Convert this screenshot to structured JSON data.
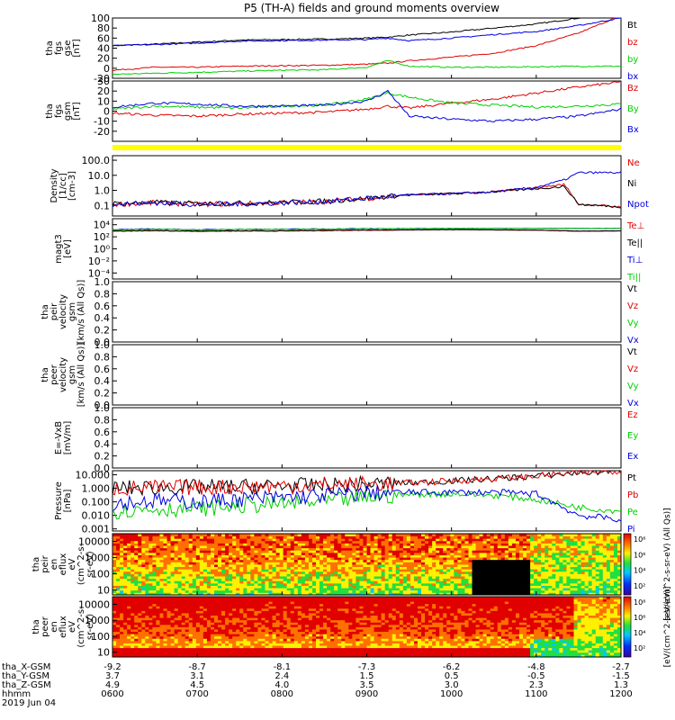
{
  "title": "P5 (TH-A) fields and ground moments overview",
  "time_axis": {
    "rows": [
      {
        "label": "tha_X-GSM",
        "values": [
          "-9.2",
          "-8.7",
          "-8.1",
          "-7.3",
          "-6.2",
          "-4.8",
          "-2.7"
        ]
      },
      {
        "label": "tha_Y-GSM",
        "values": [
          "3.7",
          "3.1",
          "2.4",
          "1.5",
          "0.5",
          "-0.5",
          "-1.5"
        ]
      },
      {
        "label": "tha_Z-GSM",
        "values": [
          "4.9",
          "4.5",
          "4.0",
          "3.5",
          "3.0",
          "2.3",
          "1.3"
        ]
      },
      {
        "label": "hhmm",
        "values": [
          "0600",
          "0700",
          "0800",
          "0900",
          "1000",
          "1100",
          "1200"
        ]
      }
    ],
    "date": "2019 Jun 04"
  },
  "colors": {
    "black": "#000000",
    "red": "#e00000",
    "green": "#00d000",
    "blue": "#0000e0",
    "yellow": "#ffff00"
  },
  "chart_data": [
    {
      "type": "line",
      "title": "tha fgs gse [nT]",
      "ylabel_lines": [
        "tha",
        "fgs",
        "gse",
        "[nT]"
      ],
      "ylim": [
        -20,
        100
      ],
      "yticks": [
        "-20",
        "0",
        "20",
        "40",
        "60",
        "80",
        "100"
      ],
      "x": [
        "06:00",
        "06:30",
        "07:00",
        "07:30",
        "08:00",
        "08:30",
        "09:00",
        "09:15",
        "09:30",
        "10:00",
        "10:30",
        "11:00",
        "11:30",
        "12:00"
      ],
      "series": [
        {
          "name": "Bt",
          "color": "#000000",
          "values": [
            45,
            48,
            52,
            56,
            57,
            58,
            60,
            62,
            66,
            72,
            80,
            88,
            100,
            120
          ]
        },
        {
          "name": "bz",
          "color": "#e00000",
          "values": [
            -4,
            2,
            2,
            4,
            5,
            6,
            8,
            10,
            15,
            22,
            30,
            45,
            70,
            105
          ]
        },
        {
          "name": "by",
          "color": "#00d000",
          "values": [
            -12,
            -10,
            -8,
            -6,
            -4,
            -3,
            2,
            15,
            4,
            2,
            2,
            3,
            4,
            4
          ]
        },
        {
          "name": "bx",
          "color": "#0000e0",
          "values": [
            45,
            47,
            50,
            54,
            55,
            56,
            57,
            60,
            55,
            60,
            67,
            73,
            85,
            100
          ]
        }
      ]
    },
    {
      "type": "line",
      "title": "tha fgs gsm [nT]",
      "ylabel_lines": [
        "tha",
        "fgs",
        "gsm",
        "[nT]"
      ],
      "ylim": [
        -30,
        30
      ],
      "yticks": [
        "-20",
        "-10",
        "0",
        "10",
        "20",
        "30"
      ],
      "x": [
        "06:00",
        "06:30",
        "07:00",
        "07:30",
        "08:00",
        "08:30",
        "09:00",
        "09:15",
        "09:30",
        "10:00",
        "10:30",
        "11:00",
        "11:30",
        "12:00"
      ],
      "series": [
        {
          "name": "Bz",
          "color": "#e00000",
          "values": [
            -2,
            -4,
            -5,
            -3,
            -2,
            -1,
            2,
            5,
            3,
            8,
            12,
            18,
            24,
            29
          ]
        },
        {
          "name": "By",
          "color": "#00d000",
          "values": [
            2,
            5,
            4,
            3,
            5,
            6,
            12,
            18,
            14,
            8,
            6,
            4,
            5,
            7
          ]
        },
        {
          "name": "Bx",
          "color": "#0000e0",
          "values": [
            4,
            8,
            7,
            5,
            5,
            6,
            10,
            20,
            -5,
            -8,
            -10,
            -8,
            -5,
            2
          ]
        }
      ]
    },
    {
      "type": "line",
      "title": "Density [1/cc] [cm-3]",
      "ylabel_lines": [
        "Density",
        "[1/cc]",
        "[cm-3]"
      ],
      "yscale": "log",
      "ylim": [
        0.02,
        200
      ],
      "yticks": [
        "0.1",
        "1.0",
        "10.0",
        "100.0"
      ],
      "x": [
        "06:00",
        "06:30",
        "07:00",
        "07:30",
        "08:00",
        "08:30",
        "09:00",
        "09:30",
        "10:00",
        "10:30",
        "11:00",
        "11:20",
        "11:30",
        "12:00"
      ],
      "series": [
        {
          "name": "Ne",
          "color": "#e00000",
          "values": [
            0.12,
            0.15,
            0.12,
            0.13,
            0.15,
            0.18,
            0.3,
            0.5,
            0.6,
            0.8,
            1.5,
            2.5,
            0.12,
            0.08
          ]
        },
        {
          "name": "Ni",
          "color": "#000000",
          "values": [
            0.13,
            0.16,
            0.13,
            0.14,
            0.16,
            0.19,
            0.3,
            0.5,
            0.6,
            0.8,
            1.3,
            1.8,
            0.12,
            0.08
          ]
        },
        {
          "name": "Npot",
          "color": "#0000e0",
          "values": [
            0.12,
            0.15,
            0.12,
            0.13,
            0.15,
            0.18,
            0.3,
            0.5,
            0.6,
            0.8,
            1.6,
            5,
            15,
            15
          ]
        }
      ]
    },
    {
      "type": "line",
      "title": "magt3 [eV]",
      "ylabel_lines": [
        "magt3",
        "[eV]"
      ],
      "yscale": "log",
      "ylim": [
        1e-05,
        100000
      ],
      "yticks": [
        "10-4",
        "10-2",
        "10^0",
        "10^2",
        "10^4"
      ],
      "x": [
        "06:00",
        "06:30",
        "07:00",
        "07:30",
        "08:00",
        "09:00",
        "10:00",
        "11:00",
        "11:30",
        "12:00"
      ],
      "series": [
        {
          "name": "Te⊥",
          "color": "#e00000",
          "values": [
            800,
            1000,
            800,
            900,
            900,
            1200,
            1500,
            1200,
            800,
            900
          ]
        },
        {
          "name": "Te||",
          "color": "#000000",
          "values": [
            900,
            1100,
            900,
            1000,
            1000,
            1300,
            1600,
            1300,
            900,
            1000
          ]
        },
        {
          "name": "Ti⊥",
          "color": "#0000e0",
          "values": [
            1500,
            2000,
            1500,
            1800,
            1800,
            2200,
            2500,
            2500,
            2500,
            2500
          ]
        },
        {
          "name": "Ti||",
          "color": "#00d000",
          "values": [
            1400,
            1800,
            1400,
            1700,
            1700,
            2000,
            2400,
            2400,
            2400,
            2400
          ]
        }
      ]
    },
    {
      "type": "line",
      "title": "tha peir velocity gsm [km/s (All Qs)]",
      "ylabel_lines": [
        "tha",
        "peir",
        "velocity",
        "gsm",
        "[km/s (All Qs)]"
      ],
      "ylim": [
        0,
        1
      ],
      "yticks": [
        "0.0",
        "0.2",
        "0.4",
        "0.6",
        "0.8",
        "1.0"
      ],
      "series": [
        {
          "name": "Vt",
          "color": "#000000",
          "values": []
        },
        {
          "name": "Vz",
          "color": "#e00000",
          "values": []
        },
        {
          "name": "Vy",
          "color": "#00d000",
          "values": []
        },
        {
          "name": "Vx",
          "color": "#0000e0",
          "values": []
        }
      ]
    },
    {
      "type": "line",
      "title": "tha peer velocity gsm [km/s (All Qs)]",
      "ylabel_lines": [
        "tha",
        "peer",
        "velocity",
        "gsm",
        "[km/s (All Qs)]"
      ],
      "ylim": [
        0,
        1
      ],
      "yticks": [
        "0.0",
        "0.2",
        "0.4",
        "0.6",
        "0.8",
        "1.0"
      ],
      "series": [
        {
          "name": "Vt",
          "color": "#000000",
          "values": []
        },
        {
          "name": "Vz",
          "color": "#e00000",
          "values": []
        },
        {
          "name": "Vy",
          "color": "#00d000",
          "values": []
        },
        {
          "name": "Vx",
          "color": "#0000e0",
          "values": []
        }
      ]
    },
    {
      "type": "line",
      "title": "E=-VxB [mV/m]",
      "ylabel_lines": [
        "E=-VxB",
        "[mV/m]"
      ],
      "ylim": [
        0,
        1
      ],
      "yticks": [
        "0.0",
        "0.2",
        "0.4",
        "0.6",
        "0.8",
        "1.0"
      ],
      "series": [
        {
          "name": "Ez",
          "color": "#e00000",
          "values": []
        },
        {
          "name": "Ey",
          "color": "#00d000",
          "values": []
        },
        {
          "name": "Ex",
          "color": "#0000e0",
          "values": []
        }
      ]
    },
    {
      "type": "line",
      "title": "Pressure [nPa]",
      "ylabel_lines": [
        "Pressure",
        "[nPa]"
      ],
      "yscale": "log",
      "ylim": [
        0.0007,
        20
      ],
      "yticks": [
        "0.001",
        "0.010",
        "0.100",
        "1.000",
        "10.000"
      ],
      "x": [
        "06:00",
        "06:30",
        "07:00",
        "07:30",
        "08:00",
        "08:30",
        "09:00",
        "09:30",
        "10:00",
        "10:30",
        "11:00",
        "11:30",
        "12:00"
      ],
      "series": [
        {
          "name": "Pt",
          "color": "#000000",
          "values": [
            1.0,
            1.1,
            1.2,
            1.3,
            1.5,
            1.7,
            2.0,
            2.5,
            3.5,
            5,
            8,
            14,
            20
          ]
        },
        {
          "name": "Pb",
          "color": "#e00000",
          "values": [
            1.0,
            1.1,
            1.2,
            1.3,
            1.5,
            1.7,
            2.0,
            2.5,
            3.5,
            5,
            8,
            14,
            20
          ]
        },
        {
          "name": "Pe",
          "color": "#00d000",
          "values": [
            0.02,
            0.03,
            0.03,
            0.05,
            0.07,
            0.1,
            0.2,
            0.35,
            0.4,
            0.3,
            0.15,
            0.04,
            0.02
          ]
        },
        {
          "name": "Pi",
          "color": "#0000e0",
          "values": [
            0.08,
            0.12,
            0.1,
            0.15,
            0.2,
            0.3,
            0.45,
            0.5,
            0.5,
            0.5,
            0.4,
            0.01,
            0.005
          ]
        }
      ]
    },
    {
      "type": "heatmap",
      "title": "tha peir en eflux",
      "ylabel_lines": [
        "tha",
        "peir",
        "en",
        "eflux",
        "eV",
        "(cm^2-s-",
        "sr-eV)"
      ],
      "yscale": "log",
      "ylim": [
        5,
        30000
      ],
      "yticks": [
        "10",
        "100",
        "1000",
        "10000"
      ],
      "colorbar": {
        "label": "[eV/(cm^2-s-sr-eV) (All Qs)]",
        "ticks": [
          "10^2",
          "10^4",
          "10^6",
          "10^8"
        ]
      }
    },
    {
      "type": "heatmap",
      "title": "tha peer en eflux",
      "ylabel_lines": [
        "tha",
        "peer",
        "en",
        "eflux",
        "eV",
        "(cm^2-s-",
        "sr-eV)"
      ],
      "yscale": "log",
      "ylim": [
        5,
        30000
      ],
      "yticks": [
        "10",
        "100",
        "1000",
        "10000"
      ],
      "colorbar": {
        "label": "[eV/(cm^2-s-sr-eV)]",
        "ticks": [
          "10^2",
          "10^4",
          "10^6",
          "10^8"
        ]
      }
    }
  ]
}
